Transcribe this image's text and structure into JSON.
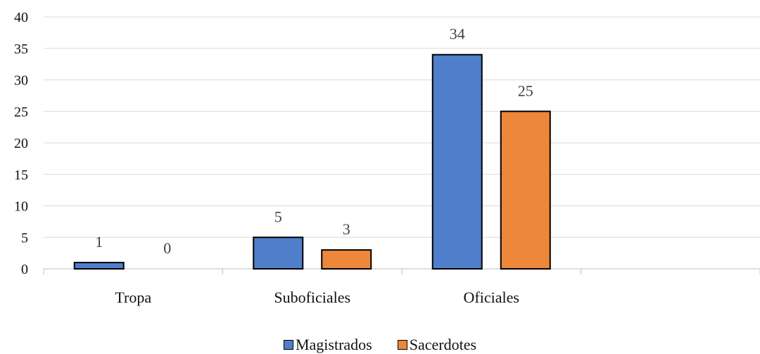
{
  "chart_data": {
    "type": "bar",
    "categories": [
      "Tropa",
      "Suboficiales",
      "Oficiales",
      ""
    ],
    "series": [
      {
        "name": "Magistrados",
        "values": [
          1,
          5,
          34,
          null
        ],
        "color": "#4F7FCB"
      },
      {
        "name": "Sacerdotes",
        "values": [
          0,
          3,
          25,
          null
        ],
        "color": "#ED873A"
      }
    ],
    "ylim": [
      0,
      40
    ],
    "yticks": [
      "0",
      "5",
      "10",
      "15",
      "20",
      "25",
      "30",
      "35",
      "40"
    ],
    "data_labels": [
      [
        "1",
        "5",
        "34",
        ""
      ],
      [
        "0",
        "3",
        "25",
        ""
      ]
    ],
    "grid": true,
    "legend_position": "bottom"
  }
}
